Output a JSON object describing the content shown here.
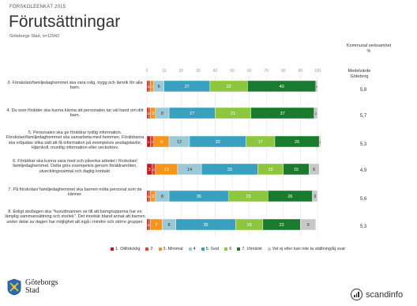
{
  "header": {
    "kicker": "FÖRSKOLEENKÄT 2015",
    "title": "Förutsättningar",
    "subtitle": "Göteborgs Stad, n=12042"
  },
  "right_panel": {
    "komm_title": "Kommunal verksamhet",
    "komm_unit": "%",
    "medel_title": "Medelvärde",
    "medel_sub": "Göteborg"
  },
  "questions": [
    {
      "text": "3. Förskolan/familjedaghemmet ska vara rolig, trygg och lärorik för alla barn.",
      "average": "5,8"
    },
    {
      "text": "4. Du som förälder ska kunna känna att personalen tar väl hand om ditt barn.",
      "average": "5,7"
    },
    {
      "text": "5. Personalen ska ge föräldrar tydlig information. Förskolan/familjedaghemmet ska samarbeta med hemmen. Föräldrarna ska erbjudas olika sätt att få information på exempelvis anslagstavlor, Hjärnkoll, muntlig information eller veckobrev.",
      "average": "5,3"
    },
    {
      "text": "6. Föräldrar ska kunna vara med och påverka arbetet i förskolan/ familjedaghemmet. Detta görs exempelvis genom föräldramöten, utvecklingssamtal och daglig kontakt.",
      "average": "4,9"
    },
    {
      "text": "7. På förskolan/ familjedaghemmet ska barnen möta personal som de känner.",
      "average": "5,6"
    },
    {
      "text": "8. Enligt skollagen ska \"huvudmannen se till att barngrupperna har en lämplig sammansättning och storlek\". Det innebär bland annat att barnen under delar av dagen har möjlighet att ingå i mindre och större grupper.",
      "average": "5,3"
    }
  ],
  "legend": [
    {
      "label": "1. Otillräcklig",
      "color": "#c4161c"
    },
    {
      "label": "2",
      "color": "#e8412c"
    },
    {
      "label": "3. Minimal",
      "color": "#f7941d"
    },
    {
      "label": "4",
      "color": "#9cc8d8"
    },
    {
      "label": "5. God",
      "color": "#3aa0bf"
    },
    {
      "label": "6",
      "color": "#8dc63f"
    },
    {
      "label": "7. Utmärkt",
      "color": "#1a7a2e"
    },
    {
      "label": "Vet ej eller kan inte ta ställning/Ej svar",
      "color": "#c8c8c8"
    }
  ],
  "logos": {
    "goteborg_line1": "Göteborgs",
    "goteborg_line2": "Stad",
    "scandinfo": "scandinfo"
  },
  "chart_data": {
    "type": "bar",
    "orientation": "horizontal",
    "stacked": true,
    "xlim": [
      0,
      100
    ],
    "xticks": [
      0,
      10,
      20,
      30,
      40,
      50,
      60,
      70,
      80,
      90,
      100
    ],
    "categories": [
      "3",
      "4",
      "5",
      "6",
      "7",
      "8"
    ],
    "series": [
      {
        "name": "1. Otillräcklig",
        "values": [
          1,
          1,
          2,
          3,
          1,
          1
        ]
      },
      {
        "name": "2",
        "values": [
          1,
          1,
          2,
          2,
          1,
          1
        ]
      },
      {
        "name": "3. Minimal",
        "values": [
          2,
          3,
          9,
          13,
          3,
          7
        ]
      },
      {
        "name": "4",
        "values": [
          6,
          8,
          12,
          14,
          8,
          8
        ]
      },
      {
        "name": "5. God",
        "values": [
          27,
          27,
          33,
          33,
          35,
          35
        ]
      },
      {
        "name": "6",
        "values": [
          22,
          21,
          17,
          15,
          23,
          16
        ]
      },
      {
        "name": "7. Utmärkt",
        "values": [
          40,
          37,
          26,
          15,
          26,
          22
        ]
      },
      {
        "name": "Vet ej eller kan inte ta ställning/Ej svar",
        "values": [
          1,
          2,
          1,
          6,
          3,
          9
        ]
      }
    ]
  }
}
